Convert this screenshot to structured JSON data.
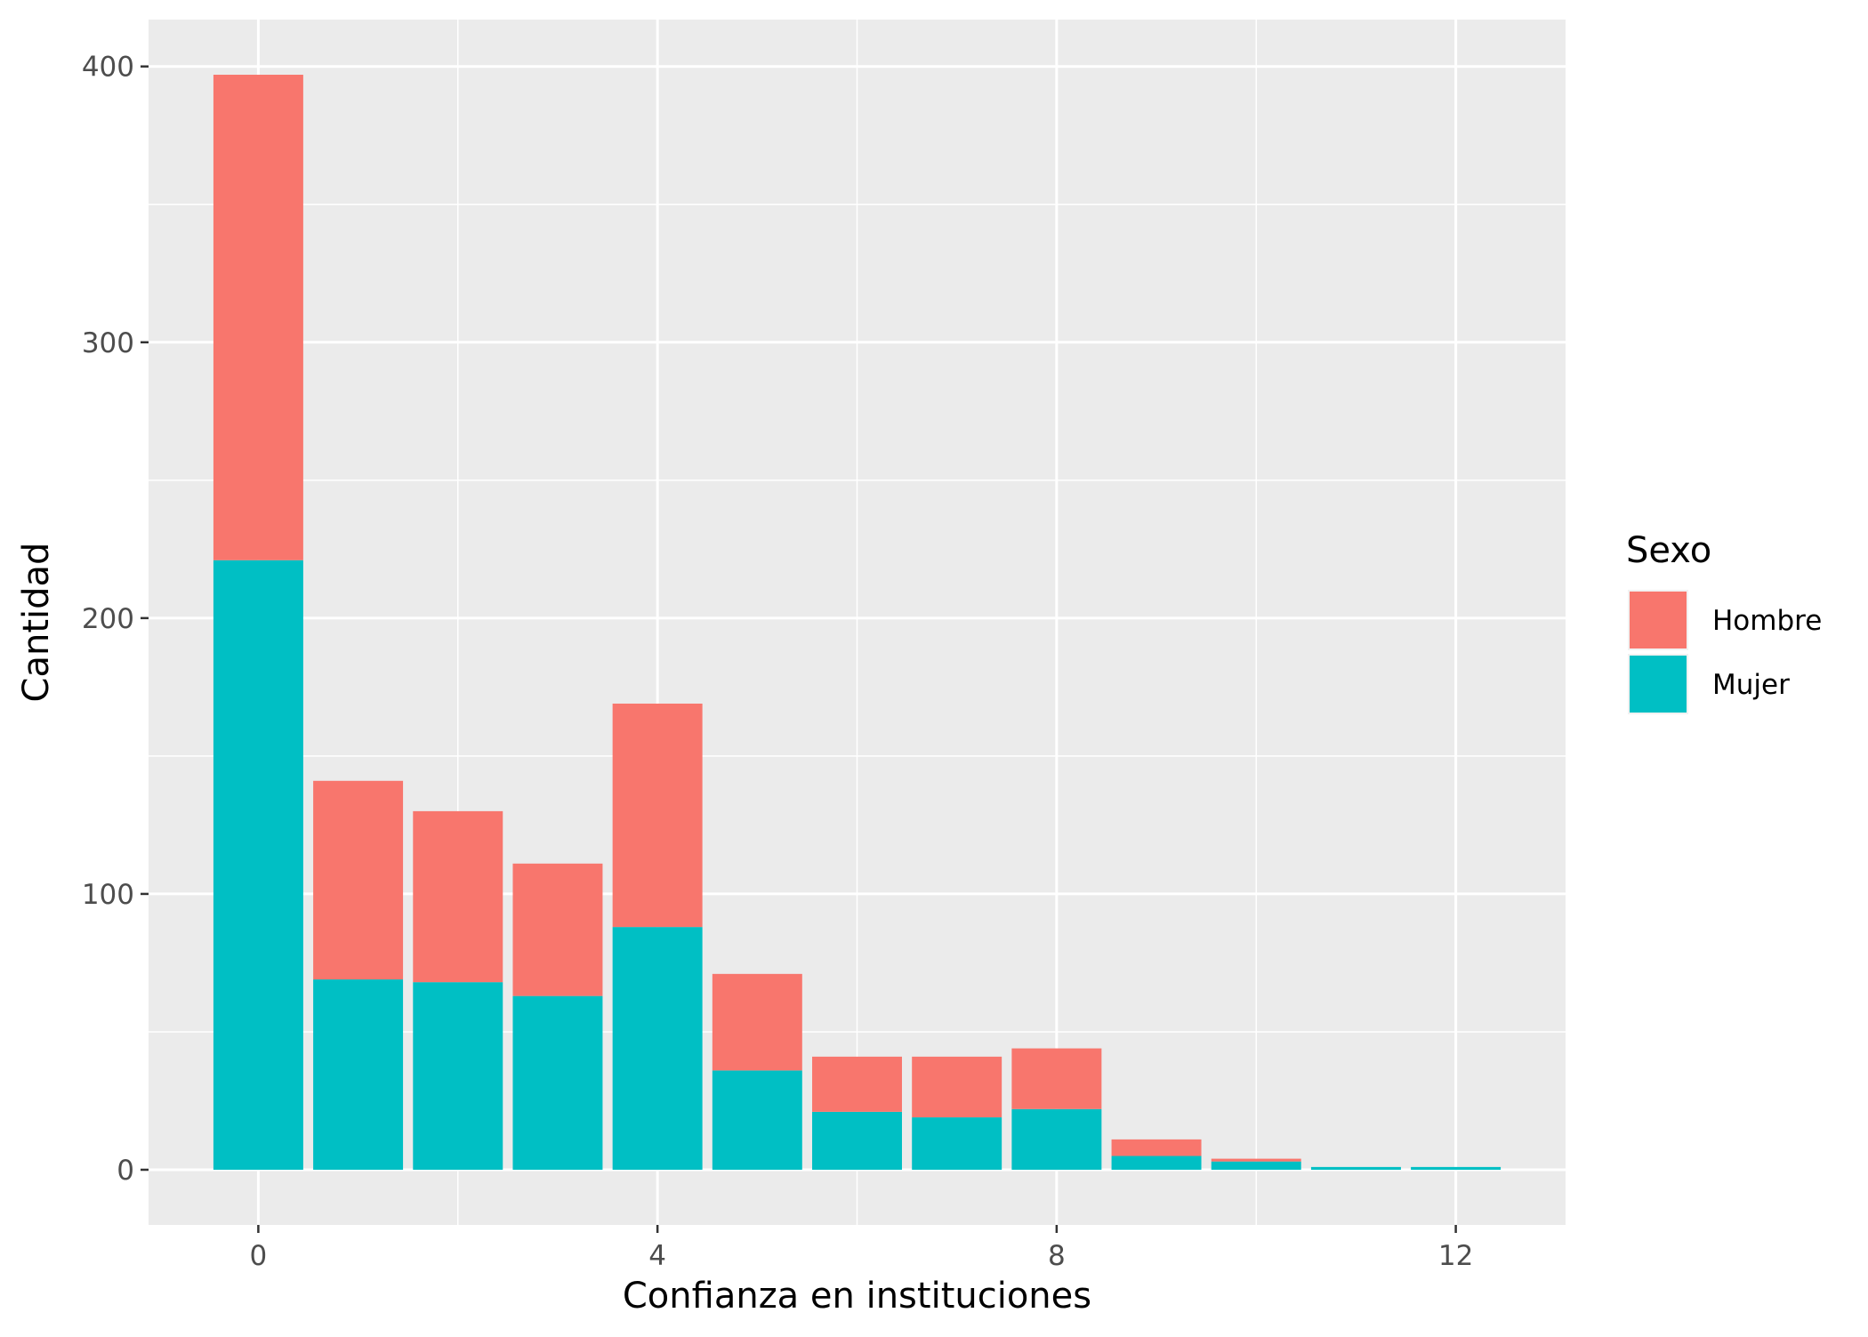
{
  "chart_data": {
    "type": "bar",
    "stacked": true,
    "xlabel": "Confianza en instituciones",
    "ylabel": "Cantidad",
    "x": [
      0,
      1,
      2,
      3,
      4,
      5,
      6,
      7,
      8,
      9,
      10,
      11,
      12
    ],
    "xlim": [
      -1.1,
      13.1
    ],
    "ylim": [
      -20,
      417
    ],
    "x_ticks": [
      0,
      4,
      8,
      12
    ],
    "y_ticks": [
      0,
      100,
      200,
      300,
      400
    ],
    "grid": true,
    "legend": {
      "title": "Sexo",
      "placement": "right"
    },
    "series": [
      {
        "name": "Mujer",
        "color": "#00BFC4",
        "values": [
          221,
          69,
          68,
          63,
          88,
          36,
          21,
          19,
          22,
          5,
          3,
          1,
          1
        ]
      },
      {
        "name": "Hombre",
        "color": "#F8766D",
        "values": [
          176,
          72,
          62,
          48,
          81,
          35,
          20,
          22,
          22,
          6,
          1,
          0,
          0
        ]
      }
    ],
    "legend_order": [
      "Hombre",
      "Mujer"
    ],
    "panel_color": "#EBEBEB",
    "grid_color": "#FFFFFF"
  }
}
